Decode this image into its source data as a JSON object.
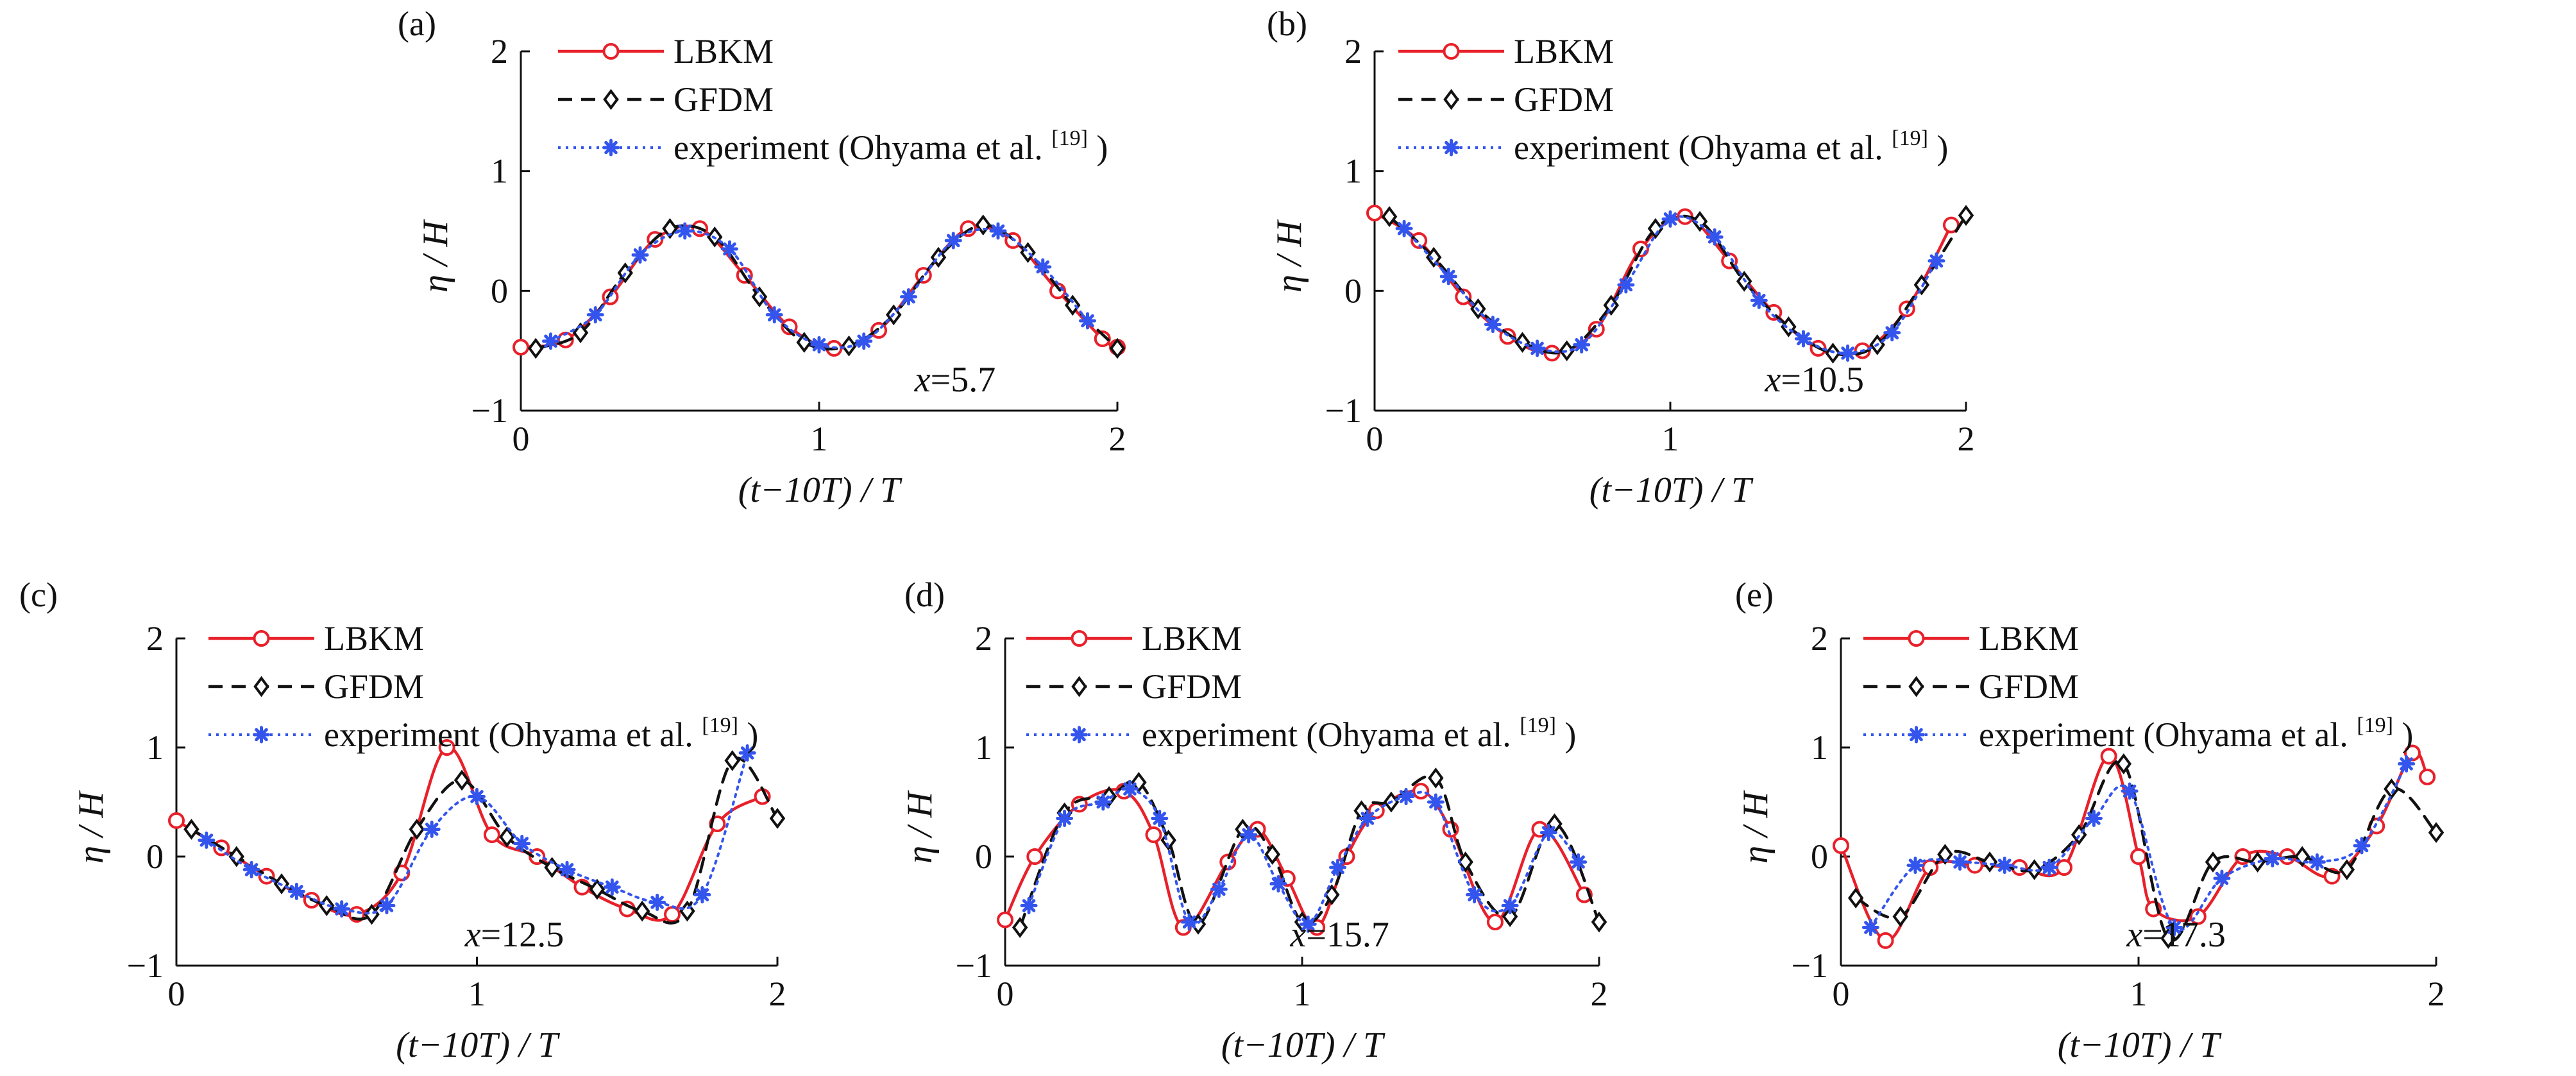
{
  "figure": {
    "legend": [
      {
        "key": "lbkm",
        "label": "LBKM",
        "color": "#e8202a",
        "marker": "circle",
        "dash": "solid"
      },
      {
        "key": "gfdm",
        "label": "GFDM",
        "color": "#111111",
        "marker": "diamond",
        "dash": "dashed"
      },
      {
        "key": "exp",
        "label": "experiment (Ohyama et al.",
        "sup": "[19]",
        "close": ")",
        "color": "#3355ee",
        "marker": "star",
        "dash": "dotted"
      }
    ]
  },
  "chart_data": [
    {
      "type": "line",
      "panel": "(a)",
      "xlabel": "(t−10T) / T",
      "ylabel": "η / H",
      "xlim": [
        0,
        2
      ],
      "ylim": [
        -1,
        2
      ],
      "xticks": [
        0,
        1,
        2
      ],
      "yticks": [
        -1,
        0,
        1,
        2
      ],
      "annotation": "x=5.7",
      "series": [
        {
          "name": "LBKM",
          "x": [
            0,
            0.15,
            0.3,
            0.45,
            0.6,
            0.75,
            0.9,
            1.05,
            1.2,
            1.35,
            1.5,
            1.65,
            1.8,
            1.95,
            2.0
          ],
          "y": [
            -0.47,
            -0.41,
            -0.05,
            0.43,
            0.52,
            0.13,
            -0.3,
            -0.48,
            -0.33,
            0.13,
            0.52,
            0.42,
            0.0,
            -0.4,
            -0.47
          ]
        },
        {
          "name": "GFDM",
          "x": [
            0.05,
            0.2,
            0.35,
            0.5,
            0.65,
            0.8,
            0.95,
            1.1,
            1.25,
            1.4,
            1.55,
            1.7,
            1.85,
            2.0
          ],
          "y": [
            -0.48,
            -0.35,
            0.15,
            0.52,
            0.45,
            -0.05,
            -0.43,
            -0.46,
            -0.2,
            0.28,
            0.55,
            0.32,
            -0.12,
            -0.48
          ]
        },
        {
          "name": "experiment (Ohyama et al. [19])",
          "x": [
            0.1,
            0.25,
            0.4,
            0.55,
            0.7,
            0.85,
            1.0,
            1.15,
            1.3,
            1.45,
            1.6,
            1.75,
            1.9
          ],
          "y": [
            -0.42,
            -0.2,
            0.3,
            0.5,
            0.35,
            -0.2,
            -0.45,
            -0.42,
            -0.05,
            0.42,
            0.5,
            0.2,
            -0.25
          ]
        }
      ]
    },
    {
      "type": "line",
      "panel": "(b)",
      "xlabel": "(t−10T) / T",
      "ylabel": "η / H",
      "xlim": [
        0,
        2
      ],
      "ylim": [
        -1,
        2
      ],
      "xticks": [
        0,
        1,
        2
      ],
      "yticks": [
        -1,
        0,
        1,
        2
      ],
      "annotation": "x=10.5",
      "series": [
        {
          "name": "LBKM",
          "x": [
            0,
            0.15,
            0.3,
            0.45,
            0.6,
            0.75,
            0.9,
            1.05,
            1.2,
            1.35,
            1.5,
            1.65,
            1.8,
            1.95
          ],
          "y": [
            0.65,
            0.42,
            -0.05,
            -0.38,
            -0.52,
            -0.32,
            0.35,
            0.62,
            0.25,
            -0.18,
            -0.48,
            -0.5,
            -0.15,
            0.55
          ]
        },
        {
          "name": "GFDM",
          "x": [
            0.05,
            0.2,
            0.35,
            0.5,
            0.65,
            0.8,
            0.95,
            1.1,
            1.25,
            1.4,
            1.55,
            1.7,
            1.85,
            2.0
          ],
          "y": [
            0.62,
            0.28,
            -0.15,
            -0.43,
            -0.5,
            -0.12,
            0.52,
            0.58,
            0.08,
            -0.3,
            -0.52,
            -0.45,
            0.05,
            0.63
          ]
        },
        {
          "name": "experiment (Ohyama et al. [19])",
          "x": [
            0.1,
            0.25,
            0.4,
            0.55,
            0.7,
            0.85,
            1.0,
            1.15,
            1.3,
            1.45,
            1.6,
            1.75,
            1.9
          ],
          "y": [
            0.52,
            0.12,
            -0.28,
            -0.48,
            -0.45,
            0.05,
            0.6,
            0.45,
            -0.08,
            -0.4,
            -0.52,
            -0.35,
            0.25
          ]
        }
      ]
    },
    {
      "type": "line",
      "panel": "(c)",
      "xlabel": "(t−10T) / T",
      "ylabel": "η / H",
      "xlim": [
        0,
        2
      ],
      "ylim": [
        -1,
        2
      ],
      "xticks": [
        0,
        1,
        2
      ],
      "yticks": [
        -1,
        0,
        1,
        2
      ],
      "annotation": "x=12.5",
      "series": [
        {
          "name": "LBKM",
          "x": [
            0,
            0.15,
            0.3,
            0.45,
            0.6,
            0.75,
            0.9,
            1.05,
            1.2,
            1.35,
            1.5,
            1.65,
            1.8,
            1.95
          ],
          "y": [
            0.33,
            0.08,
            -0.18,
            -0.4,
            -0.53,
            -0.15,
            1.0,
            0.2,
            0.0,
            -0.28,
            -0.48,
            -0.53,
            0.3,
            0.55
          ]
        },
        {
          "name": "GFDM",
          "x": [
            0.05,
            0.2,
            0.35,
            0.5,
            0.65,
            0.8,
            0.95,
            1.1,
            1.25,
            1.4,
            1.55,
            1.7,
            1.85,
            2.0
          ],
          "y": [
            0.25,
            0.0,
            -0.25,
            -0.45,
            -0.53,
            0.25,
            0.7,
            0.18,
            -0.1,
            -0.3,
            -0.5,
            -0.5,
            0.88,
            0.35
          ]
        },
        {
          "name": "experiment (Ohyama et al. [19])",
          "x": [
            0.1,
            0.25,
            0.4,
            0.55,
            0.7,
            0.85,
            1.0,
            1.15,
            1.3,
            1.45,
            1.6,
            1.75,
            1.9
          ],
          "y": [
            0.15,
            -0.12,
            -0.32,
            -0.48,
            -0.45,
            0.25,
            0.55,
            0.12,
            -0.12,
            -0.28,
            -0.42,
            -0.35,
            0.95
          ]
        }
      ]
    },
    {
      "type": "line",
      "panel": "(d)",
      "xlabel": "(t−10T) / T",
      "ylabel": "η / H",
      "xlim": [
        0,
        2
      ],
      "ylim": [
        -1,
        2
      ],
      "xticks": [
        0,
        1,
        2
      ],
      "yticks": [
        -1,
        0,
        1,
        2
      ],
      "annotation": "x=15.7",
      "series": [
        {
          "name": "LBKM",
          "x": [
            0,
            0.1,
            0.25,
            0.4,
            0.5,
            0.6,
            0.75,
            0.85,
            0.95,
            1.05,
            1.15,
            1.25,
            1.4,
            1.5,
            1.65,
            1.8,
            1.95
          ],
          "y": [
            -0.58,
            0.0,
            0.48,
            0.6,
            0.2,
            -0.65,
            -0.05,
            0.25,
            -0.2,
            -0.65,
            0.0,
            0.42,
            0.6,
            0.25,
            -0.6,
            0.25,
            -0.35
          ]
        },
        {
          "name": "GFDM",
          "x": [
            0.05,
            0.2,
            0.35,
            0.45,
            0.55,
            0.65,
            0.8,
            0.9,
            1.0,
            1.1,
            1.2,
            1.3,
            1.45,
            1.55,
            1.7,
            1.85,
            2.0
          ],
          "y": [
            -0.65,
            0.4,
            0.55,
            0.68,
            0.15,
            -0.62,
            0.25,
            0.02,
            -0.6,
            -0.35,
            0.42,
            0.5,
            0.72,
            -0.05,
            -0.55,
            0.3,
            -0.6
          ]
        },
        {
          "name": "experiment (Ohyama et al. [19])",
          "x": [
            0.08,
            0.2,
            0.33,
            0.42,
            0.52,
            0.62,
            0.72,
            0.82,
            0.92,
            1.02,
            1.12,
            1.22,
            1.35,
            1.45,
            1.58,
            1.7,
            1.83,
            1.93
          ],
          "y": [
            -0.45,
            0.35,
            0.5,
            0.62,
            0.35,
            -0.6,
            -0.3,
            0.2,
            -0.25,
            -0.62,
            -0.1,
            0.35,
            0.55,
            0.5,
            -0.35,
            -0.45,
            0.22,
            -0.05
          ]
        }
      ]
    },
    {
      "type": "line",
      "panel": "(e)",
      "xlabel": "(t−10T) / T",
      "ylabel": "η / H",
      "xlim": [
        0,
        2
      ],
      "ylim": [
        -1,
        2
      ],
      "xticks": [
        0,
        1,
        2
      ],
      "yticks": [
        -1,
        0,
        1,
        2
      ],
      "annotation": "x=17.3",
      "series": [
        {
          "name": "LBKM",
          "x": [
            0,
            0.15,
            0.3,
            0.45,
            0.6,
            0.75,
            0.9,
            1.0,
            1.05,
            1.2,
            1.35,
            1.5,
            1.65,
            1.8,
            1.92,
            1.97
          ],
          "y": [
            0.1,
            -0.77,
            -0.1,
            -0.08,
            -0.1,
            -0.1,
            0.92,
            0.0,
            -0.48,
            -0.55,
            0.0,
            0.0,
            -0.18,
            0.28,
            0.95,
            0.73
          ]
        },
        {
          "name": "GFDM",
          "x": [
            0.05,
            0.2,
            0.35,
            0.5,
            0.65,
            0.8,
            0.95,
            1.1,
            1.25,
            1.4,
            1.55,
            1.7,
            1.85,
            2.0
          ],
          "y": [
            -0.38,
            -0.55,
            0.02,
            -0.05,
            -0.12,
            0.2,
            0.85,
            -0.75,
            -0.05,
            -0.05,
            0.0,
            -0.12,
            0.62,
            0.22
          ]
        },
        {
          "name": "experiment (Ohyama et al. [19])",
          "x": [
            0.1,
            0.25,
            0.4,
            0.55,
            0.7,
            0.85,
            0.97,
            1.12,
            1.28,
            1.45,
            1.6,
            1.75,
            1.9
          ],
          "y": [
            -0.65,
            -0.08,
            -0.05,
            -0.08,
            -0.1,
            0.35,
            0.6,
            -0.65,
            -0.2,
            -0.02,
            -0.05,
            0.1,
            0.85
          ]
        }
      ]
    }
  ]
}
